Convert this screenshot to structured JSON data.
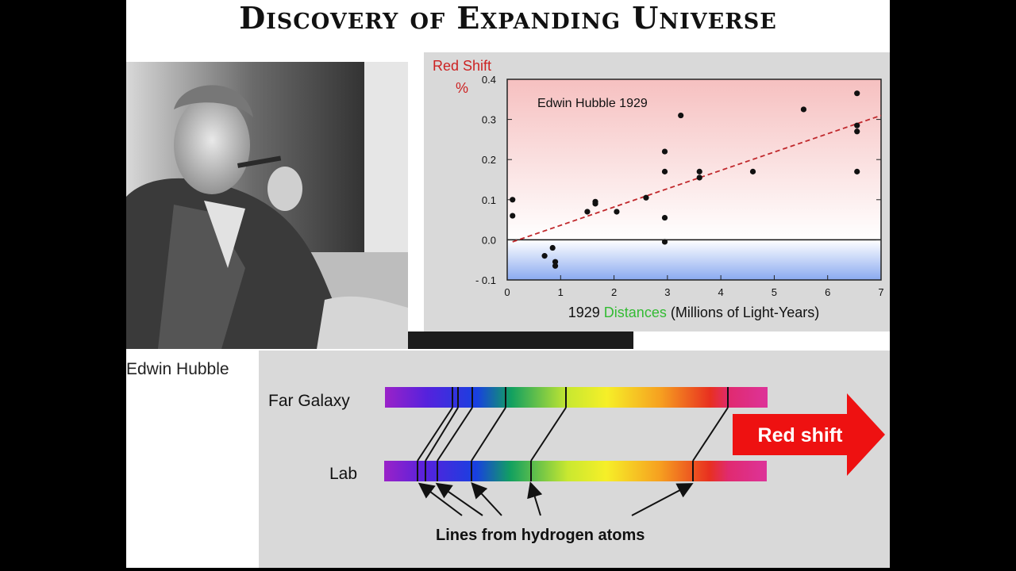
{
  "slide": {
    "title": "Discovery of Expanding Universe"
  },
  "photo": {
    "caption": "Edwin Hubble"
  },
  "chart_data": {
    "type": "scatter",
    "title": "Edwin Hubble 1929",
    "ylabel_line1": "Red Shift",
    "ylabel_line2": "%",
    "xlabel_prefix": "1929",
    "xlabel_highlight": "Distances",
    "xlabel_suffix": "(Millions of Light-Years)",
    "xlim": [
      0,
      7
    ],
    "ylim": [
      -0.1,
      0.4
    ],
    "xticks": [
      "0",
      "1",
      "2",
      "3",
      "4",
      "5",
      "6",
      "7"
    ],
    "yticks": [
      "- 0.1",
      "0.0",
      "0.1",
      "0.2",
      "0.3",
      "0.4"
    ],
    "ytick_values": [
      -0.1,
      0.0,
      0.1,
      0.2,
      0.3,
      0.4
    ],
    "points": [
      {
        "x": 0.1,
        "y": 0.1
      },
      {
        "x": 0.1,
        "y": 0.06
      },
      {
        "x": 0.7,
        "y": -0.04
      },
      {
        "x": 0.85,
        "y": -0.02
      },
      {
        "x": 0.9,
        "y": -0.055
      },
      {
        "x": 0.9,
        "y": -0.065
      },
      {
        "x": 1.5,
        "y": 0.07
      },
      {
        "x": 1.65,
        "y": 0.095
      },
      {
        "x": 1.65,
        "y": 0.09
      },
      {
        "x": 2.05,
        "y": 0.07
      },
      {
        "x": 2.6,
        "y": 0.105
      },
      {
        "x": 2.95,
        "y": 0.22
      },
      {
        "x": 2.95,
        "y": 0.17
      },
      {
        "x": 2.95,
        "y": 0.055
      },
      {
        "x": 2.95,
        "y": -0.005
      },
      {
        "x": 3.25,
        "y": 0.31
      },
      {
        "x": 3.6,
        "y": 0.17
      },
      {
        "x": 3.6,
        "y": 0.155
      },
      {
        "x": 4.6,
        "y": 0.17
      },
      {
        "x": 5.55,
        "y": 0.325
      },
      {
        "x": 6.55,
        "y": 0.365
      },
      {
        "x": 6.55,
        "y": 0.285
      },
      {
        "x": 6.55,
        "y": 0.27
      },
      {
        "x": 6.55,
        "y": 0.17
      }
    ],
    "trend": {
      "x": [
        0.1,
        7.0
      ],
      "y": [
        -0.005,
        0.31
      ],
      "style": "dashed",
      "color": "#c0282c"
    },
    "colors": {
      "positive": "#f7c3c3",
      "negative": "#8fb0ee",
      "ylabel": "#cc2222",
      "highlight": "#33bb33"
    }
  },
  "spectrum": {
    "far_label": "Far Galaxy",
    "lab_label": "Lab",
    "arrow_label": "Red shift",
    "caption": "Lines from hydrogen atoms",
    "arrow_color": "#ee1111"
  }
}
